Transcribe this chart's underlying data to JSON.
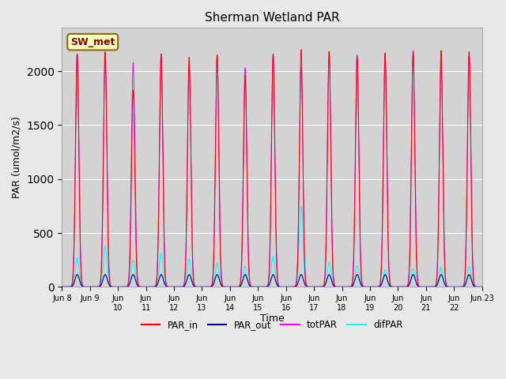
{
  "title": "Sherman Wetland PAR",
  "ylabel": "PAR (umol/m2/s)",
  "xlabel": "Time",
  "annotation": "SW_met",
  "ylim": [
    0,
    2400
  ],
  "legend_labels": [
    "PAR_in",
    "PAR_out",
    "totPAR",
    "difPAR"
  ],
  "legend_colors": [
    "#ff0000",
    "#00008b",
    "#ff00ff",
    "#00ffff"
  ],
  "background_color": "#e8e8e8",
  "plot_bg_color": "#d3d3d3",
  "grid_color": "#ffffff",
  "title_fontsize": 11,
  "tick_fontsize": 7,
  "ylabel_fontsize": 9,
  "xlabel_fontsize": 9,
  "par_in_amplitudes": [
    2160,
    2170,
    1820,
    2160,
    2130,
    2150,
    1960,
    2160,
    2200,
    2180,
    2140,
    2170,
    2170,
    2190,
    2180
  ],
  "tot_amplitudes": [
    2160,
    2180,
    2080,
    2150,
    2050,
    2150,
    2030,
    2150,
    2030,
    2180,
    2150,
    2150,
    2190,
    2080,
    2160
  ],
  "par_out_amplitudes": [
    115,
    115,
    115,
    115,
    115,
    115,
    115,
    115,
    115,
    115,
    115,
    115,
    115,
    115,
    115
  ],
  "dif_amplitudes": [
    270,
    380,
    250,
    315,
    255,
    220,
    190,
    285,
    750,
    230,
    200,
    160,
    170,
    185,
    190
  ],
  "sigma_in": 1.4,
  "sigma_tot": 1.5,
  "sigma_out": 1.8,
  "sigma_dif": 1.6,
  "solar_noon_hour": 13.0,
  "tick_positions": [
    0,
    1,
    2,
    3,
    4,
    5,
    6,
    7,
    8,
    9,
    10,
    11,
    12,
    13,
    14,
    15
  ],
  "tick_labels": [
    "Jun 8",
    "Jun 9",
    "Jun\n10",
    "Jun\n11",
    "Jun\n12",
    "Jun\n13",
    "Jun\n14",
    "Jun\n15",
    "Jun\n16",
    "Jun\n17",
    "Jun\n18",
    "Jun\n19",
    "Jun\n20",
    "Jun\n21",
    "Jun\n22",
    "Jun 23"
  ]
}
